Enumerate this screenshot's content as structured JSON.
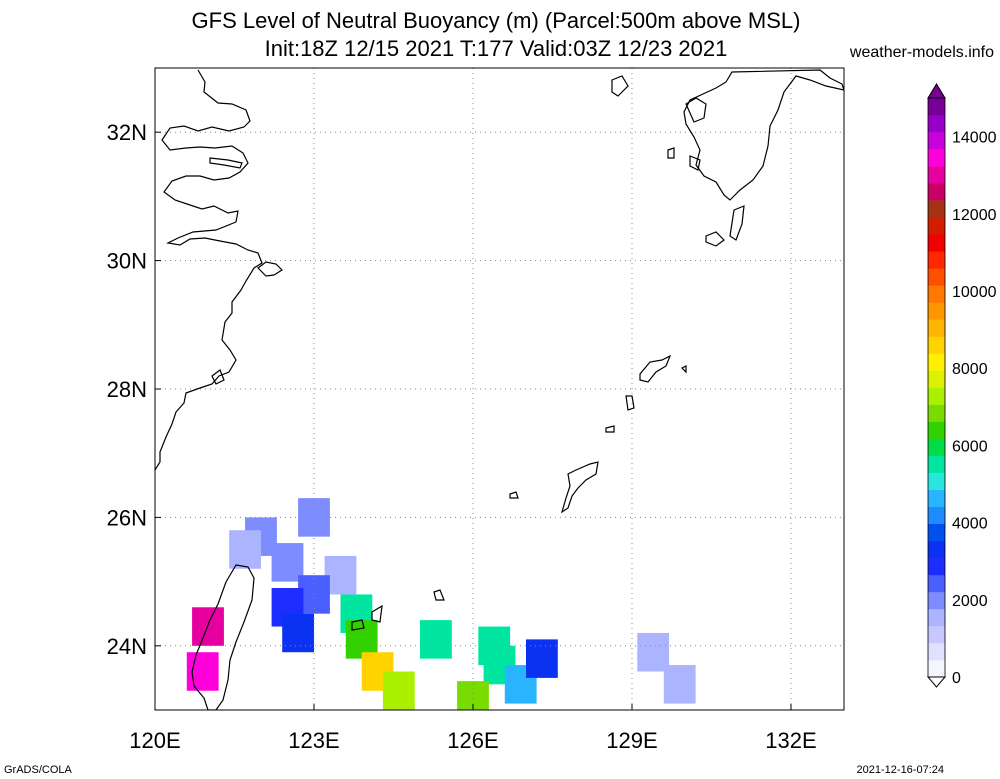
{
  "title": {
    "line1": "GFS Level of Neutral Buoyancy (m) (Parcel:500m above MSL)",
    "line2": "Init:18Z 12/15 2021 T:177 Valid:03Z 12/23 2021"
  },
  "site": "weather-models.info",
  "footer": {
    "left": "GrADS/COLA",
    "right": "2021-12-16-07:24"
  },
  "map": {
    "lon_range": [
      120,
      133
    ],
    "lat_range": [
      23,
      33
    ],
    "lon_ticks": [
      {
        "value": 120,
        "label": "120E"
      },
      {
        "value": 123,
        "label": "123E"
      },
      {
        "value": 126,
        "label": "126E"
      },
      {
        "value": 129,
        "label": "129E"
      },
      {
        "value": 132,
        "label": "132E"
      }
    ],
    "lat_ticks": [
      {
        "value": 24,
        "label": "24N"
      },
      {
        "value": 26,
        "label": "26N"
      },
      {
        "value": 28,
        "label": "28N"
      },
      {
        "value": 30,
        "label": "30N"
      },
      {
        "value": 32,
        "label": "32N"
      }
    ],
    "grid": true,
    "coastline_color": "#000000",
    "filled_cells": [
      {
        "lon": 123.0,
        "lat": 26.0,
        "value": 1800
      },
      {
        "lon": 122.0,
        "lat": 25.7,
        "value": 1900
      },
      {
        "lon": 121.7,
        "lat": 25.5,
        "value": 1700
      },
      {
        "lon": 122.5,
        "lat": 25.3,
        "value": 2100
      },
      {
        "lon": 123.5,
        "lat": 25.1,
        "value": 1600
      },
      {
        "lon": 123.0,
        "lat": 24.8,
        "value": 2500
      },
      {
        "lon": 122.5,
        "lat": 24.6,
        "value": 2800
      },
      {
        "lon": 123.8,
        "lat": 24.5,
        "value": 5600
      },
      {
        "lon": 122.7,
        "lat": 24.2,
        "value": 3200
      },
      {
        "lon": 123.9,
        "lat": 24.1,
        "value": 6400
      },
      {
        "lon": 125.3,
        "lat": 24.1,
        "value": 5300
      },
      {
        "lon": 126.4,
        "lat": 24.0,
        "value": 5500
      },
      {
        "lon": 124.2,
        "lat": 23.6,
        "value": 8600
      },
      {
        "lon": 124.6,
        "lat": 23.3,
        "value": 7300
      },
      {
        "lon": 126.5,
        "lat": 23.7,
        "value": 5400
      },
      {
        "lon": 126.9,
        "lat": 23.4,
        "value": 4800
      },
      {
        "lon": 127.3,
        "lat": 23.8,
        "value": 3300
      },
      {
        "lon": 126.0,
        "lat": 23.15,
        "value": 6800
      },
      {
        "lon": 121.0,
        "lat": 24.3,
        "value": 12800
      },
      {
        "lon": 120.9,
        "lat": 23.6,
        "value": 13300
      },
      {
        "lon": 129.4,
        "lat": 23.9,
        "value": 1500
      },
      {
        "lon": 129.9,
        "lat": 23.4,
        "value": 1500
      }
    ]
  },
  "colorbar": {
    "labels": [
      "0",
      "2000",
      "4000",
      "6000",
      "8000",
      "10000",
      "12000",
      "14000"
    ],
    "max": 15000,
    "colors": [
      "#f5f5ff",
      "#e0e0ff",
      "#c8c8ff",
      "#aab4ff",
      "#7d8cff",
      "#4b5fff",
      "#1e2dff",
      "#0a32f0",
      "#0050f0",
      "#1e8cff",
      "#28b4ff",
      "#28e6dc",
      "#00e6a0",
      "#00dc46",
      "#32d200",
      "#78dc00",
      "#aaf000",
      "#dcf000",
      "#fff000",
      "#ffd200",
      "#ffb400",
      "#ff9600",
      "#ff7800",
      "#ff5000",
      "#ff2800",
      "#f00000",
      "#d21e00",
      "#a53214",
      "#c80064",
      "#e600a0",
      "#ff00dc",
      "#c800dc",
      "#9600c8",
      "#780096"
    ]
  }
}
